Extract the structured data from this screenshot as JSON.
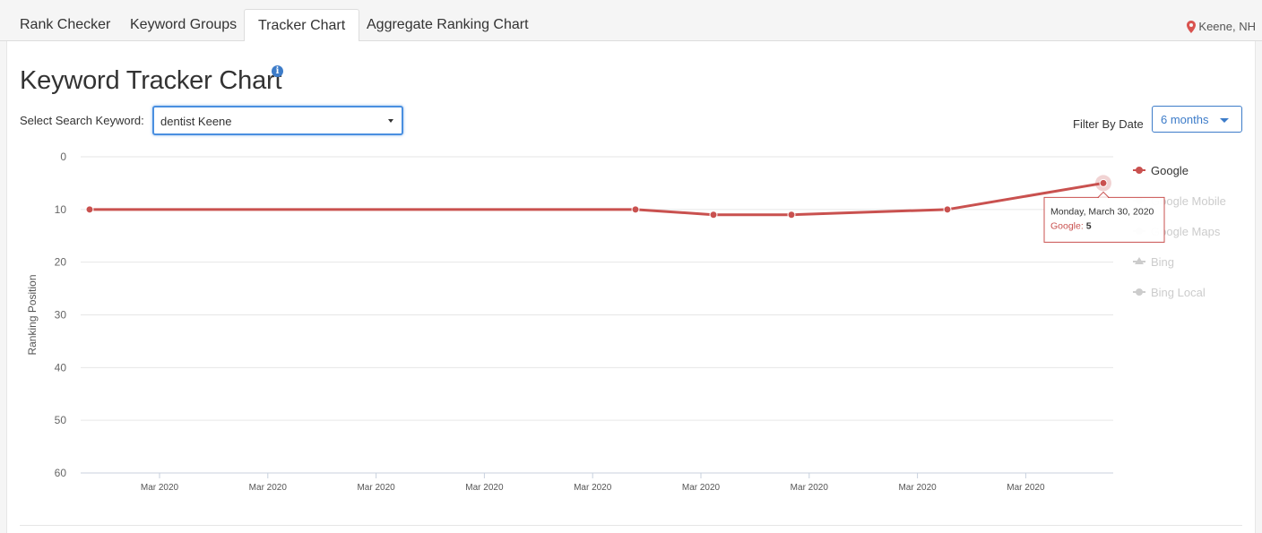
{
  "tabs": [
    {
      "label": "Rank Checker",
      "active": false
    },
    {
      "label": "Keyword Groups",
      "active": false
    },
    {
      "label": "Tracker Chart",
      "active": true
    },
    {
      "label": "Aggregate Ranking Chart",
      "active": false
    }
  ],
  "location": "Keene, NH",
  "page_title": "Keyword Tracker Chart",
  "info_icon": "info-icon",
  "keyword_selector": {
    "label": "Select Search Keyword:",
    "value": "dentist Keene"
  },
  "date_filter": {
    "label": "Filter By Date",
    "value": "6 months"
  },
  "colors": {
    "accent": "#3d7cc9",
    "series": "#c9514f",
    "location_pin": "#d9534f"
  },
  "chart_data": {
    "type": "line",
    "ylabel": "Ranking Position",
    "ylim": [
      0,
      60
    ],
    "y_reversed": true,
    "yticks": [
      0,
      10,
      20,
      30,
      40,
      50,
      60
    ],
    "xtick_labels": [
      "Mar 2020",
      "Mar 2020",
      "Mar 2020",
      "Mar 2020",
      "Mar 2020",
      "Mar 2020",
      "Mar 2020",
      "Mar 2020",
      "Mar 2020"
    ],
    "grid": true,
    "legend_position": "right",
    "series": [
      {
        "name": "Google",
        "visible": true,
        "points": [
          10,
          10,
          11,
          11,
          10,
          5
        ]
      },
      {
        "name": "Google Mobile",
        "visible": false,
        "points": []
      },
      {
        "name": "Google Maps",
        "visible": false,
        "points": []
      },
      {
        "name": "Bing",
        "visible": false,
        "points": []
      },
      {
        "name": "Bing Local",
        "visible": false,
        "points": []
      }
    ],
    "tooltip": {
      "date": "Monday, March 30, 2020",
      "series": "Google",
      "value": 5
    }
  }
}
